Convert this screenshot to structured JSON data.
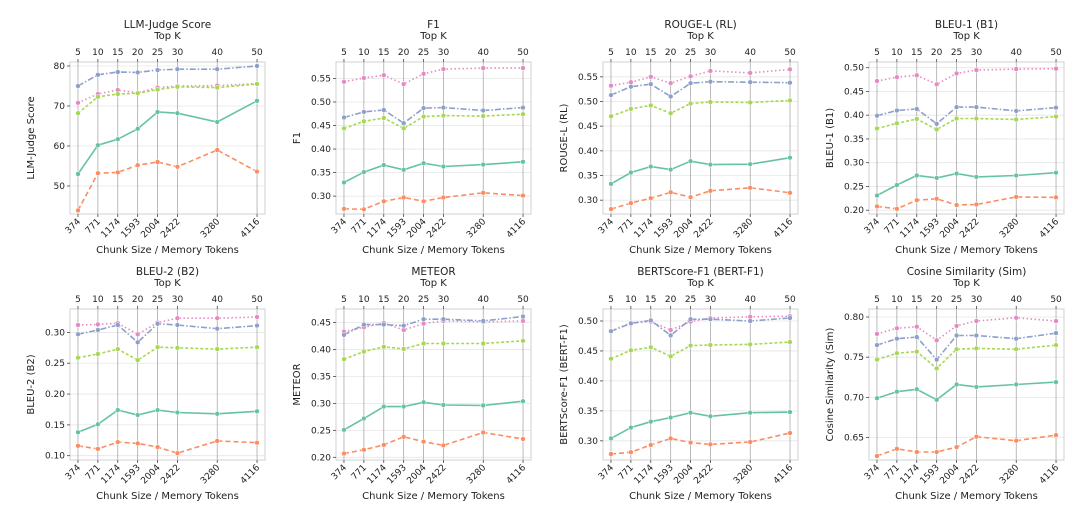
{
  "chart_data": {
    "type": "line",
    "layout": "2x4 grid",
    "xlabel": "Chunk Size / Memory Tokens",
    "top_axis_label": "Top K",
    "x_bottom_ticks": [
      "374",
      "771",
      "1174",
      "1593",
      "2004",
      "2422",
      "3280",
      "4116"
    ],
    "x_top_ticks": [
      "5",
      "10",
      "15",
      "20",
      "25",
      "30",
      "40",
      "50"
    ],
    "x_positions_topk": [
      5,
      10,
      15,
      20,
      25,
      30,
      40,
      50
    ],
    "x_points_topk": [
      5,
      10,
      15,
      20,
      25,
      30,
      40,
      50
    ],
    "series_styles": [
      {
        "key": "pink",
        "color": "#e78ac3",
        "dash": "1.5,2.5"
      },
      {
        "key": "purple",
        "color": "#8da0cb",
        "dash": "6,2,1.5,2"
      },
      {
        "key": "lime",
        "color": "#a6d854",
        "dash": "3,2"
      },
      {
        "key": "green",
        "color": "#66c2a5",
        "dash": ""
      },
      {
        "key": "orange",
        "color": "#fc8d62",
        "dash": "5,3"
      }
    ],
    "panels": [
      {
        "title": "LLM-Judge Score",
        "ylabel": "LLM-Judge Score",
        "ylim": [
          43,
          81
        ],
        "yticks": [
          50,
          60,
          70,
          80
        ],
        "series": {
          "pink": [
            70.8,
            73.0,
            74.0,
            73.3,
            74.6,
            75.0,
            75.1,
            75.6
          ],
          "purple": [
            75.0,
            77.8,
            78.5,
            78.4,
            79.0,
            79.2,
            79.2,
            80.0
          ],
          "lime": [
            68.2,
            72.3,
            73.0,
            73.2,
            74.1,
            74.8,
            74.6,
            75.5
          ],
          "green": [
            53.0,
            60.2,
            61.7,
            64.3,
            68.5,
            68.2,
            66.0,
            71.3
          ],
          "orange": [
            43.9,
            53.2,
            53.4,
            55.2,
            56.0,
            54.8,
            59.0,
            53.6
          ]
        }
      },
      {
        "title": "F1",
        "ylabel": "F1",
        "ylim": [
          0.262,
          0.585
        ],
        "yticks": [
          0.3,
          0.35,
          0.4,
          0.45,
          0.5,
          0.55
        ],
        "ytick_labels": [
          "0.30",
          "0.35",
          "0.40",
          "0.45",
          "0.50",
          "0.55"
        ],
        "series": {
          "pink": [
            0.543,
            0.551,
            0.557,
            0.538,
            0.56,
            0.57,
            0.572,
            0.572
          ],
          "purple": [
            0.467,
            0.479,
            0.483,
            0.455,
            0.487,
            0.488,
            0.482,
            0.488
          ],
          "lime": [
            0.444,
            0.459,
            0.466,
            0.444,
            0.469,
            0.471,
            0.47,
            0.474
          ],
          "green": [
            0.329,
            0.351,
            0.366,
            0.356,
            0.37,
            0.363,
            0.367,
            0.373
          ],
          "orange": [
            0.273,
            0.272,
            0.289,
            0.297,
            0.289,
            0.297,
            0.307,
            0.301
          ]
        }
      },
      {
        "title": "ROUGE-L (RL)",
        "ylabel": "ROUGE-L (RL)",
        "ylim": [
          0.272,
          0.58
        ],
        "yticks": [
          0.3,
          0.35,
          0.4,
          0.45,
          0.5,
          0.55
        ],
        "ytick_labels": [
          "0.30",
          "0.35",
          "0.40",
          "0.45",
          "0.50",
          "0.55"
        ],
        "series": {
          "pink": [
            0.532,
            0.539,
            0.55,
            0.537,
            0.551,
            0.562,
            0.558,
            0.565
          ],
          "purple": [
            0.513,
            0.53,
            0.535,
            0.51,
            0.537,
            0.54,
            0.539,
            0.538
          ],
          "lime": [
            0.47,
            0.485,
            0.492,
            0.476,
            0.496,
            0.499,
            0.498,
            0.502
          ],
          "green": [
            0.333,
            0.356,
            0.368,
            0.362,
            0.379,
            0.372,
            0.373,
            0.386
          ],
          "orange": [
            0.282,
            0.294,
            0.304,
            0.316,
            0.306,
            0.319,
            0.325,
            0.315
          ]
        }
      },
      {
        "title": "BLEU-1 (B1)",
        "ylabel": "BLEU-1 (B1)",
        "ylim": [
          0.192,
          0.512
        ],
        "yticks": [
          0.2,
          0.25,
          0.3,
          0.35,
          0.4,
          0.45,
          0.5
        ],
        "ytick_labels": [
          "0.20",
          "0.25",
          "0.30",
          "0.35",
          "0.40",
          "0.45",
          "0.50"
        ],
        "series": {
          "pink": [
            0.472,
            0.48,
            0.484,
            0.465,
            0.488,
            0.495,
            0.497,
            0.498
          ],
          "purple": [
            0.399,
            0.41,
            0.413,
            0.382,
            0.417,
            0.417,
            0.409,
            0.416
          ],
          "lime": [
            0.372,
            0.383,
            0.392,
            0.37,
            0.393,
            0.393,
            0.391,
            0.397
          ],
          "green": [
            0.231,
            0.253,
            0.273,
            0.268,
            0.277,
            0.27,
            0.273,
            0.279
          ],
          "orange": [
            0.208,
            0.203,
            0.221,
            0.224,
            0.211,
            0.212,
            0.228,
            0.227
          ]
        }
      },
      {
        "title": "BLEU-2 (B2)",
        "ylabel": "BLEU-2 (B2)",
        "ylim": [
          0.093,
          0.338
        ],
        "yticks": [
          0.1,
          0.15,
          0.2,
          0.25,
          0.3
        ],
        "ytick_labels": [
          "0.10",
          "0.15",
          "0.20",
          "0.25",
          "0.30"
        ],
        "series": {
          "pink": [
            0.312,
            0.313,
            0.315,
            0.297,
            0.316,
            0.323,
            0.323,
            0.325
          ],
          "purple": [
            0.297,
            0.304,
            0.312,
            0.284,
            0.314,
            0.312,
            0.306,
            0.311
          ],
          "lime": [
            0.259,
            0.265,
            0.273,
            0.255,
            0.276,
            0.275,
            0.273,
            0.276
          ],
          "green": [
            0.138,
            0.151,
            0.174,
            0.166,
            0.174,
            0.17,
            0.168,
            0.172
          ],
          "orange": [
            0.116,
            0.111,
            0.122,
            0.12,
            0.114,
            0.104,
            0.124,
            0.121
          ]
        }
      },
      {
        "title": "METEOR",
        "ylabel": "METEOR",
        "ylim": [
          0.195,
          0.475
        ],
        "yticks": [
          0.2,
          0.25,
          0.3,
          0.35,
          0.4,
          0.45
        ],
        "ytick_labels": [
          "0.20",
          "0.25",
          "0.30",
          "0.35",
          "0.40",
          "0.45"
        ],
        "series": {
          "pink": [
            0.433,
            0.441,
            0.449,
            0.436,
            0.448,
            0.453,
            0.451,
            0.453
          ],
          "purple": [
            0.427,
            0.446,
            0.446,
            0.444,
            0.456,
            0.456,
            0.453,
            0.461
          ],
          "lime": [
            0.382,
            0.396,
            0.405,
            0.401,
            0.411,
            0.411,
            0.411,
            0.416
          ],
          "green": [
            0.251,
            0.272,
            0.294,
            0.294,
            0.302,
            0.297,
            0.296,
            0.304
          ],
          "orange": [
            0.207,
            0.214,
            0.223,
            0.238,
            0.229,
            0.222,
            0.246,
            0.234
          ]
        }
      },
      {
        "title": "BERTScore-F1 (BERT-F1)",
        "ylabel": "BERTScore-F1 (BERT-F1)",
        "ylim": [
          0.268,
          0.52
        ],
        "yticks": [
          0.3,
          0.35,
          0.4,
          0.45,
          0.5
        ],
        "ytick_labels": [
          "0.30",
          "0.35",
          "0.40",
          "0.45",
          "0.50"
        ],
        "series": {
          "pink": [
            0.483,
            0.497,
            0.499,
            0.485,
            0.499,
            0.505,
            0.507,
            0.508
          ],
          "purple": [
            0.483,
            0.496,
            0.501,
            0.476,
            0.503,
            0.503,
            0.5,
            0.505
          ],
          "lime": [
            0.437,
            0.451,
            0.456,
            0.441,
            0.459,
            0.46,
            0.461,
            0.465
          ],
          "green": [
            0.304,
            0.322,
            0.332,
            0.339,
            0.347,
            0.341,
            0.347,
            0.348
          ],
          "orange": [
            0.278,
            0.281,
            0.293,
            0.304,
            0.297,
            0.294,
            0.298,
            0.313
          ]
        }
      },
      {
        "title": "Cosine Similarity (Sim)",
        "ylabel": "Cosine Similarity (Sim)",
        "ylim": [
          0.622,
          0.81
        ],
        "yticks": [
          0.65,
          0.7,
          0.75,
          0.8
        ],
        "ytick_labels": [
          "0.65",
          "0.70",
          "0.75",
          "0.80"
        ],
        "series": {
          "pink": [
            0.779,
            0.786,
            0.788,
            0.771,
            0.789,
            0.795,
            0.799,
            0.795
          ],
          "purple": [
            0.765,
            0.773,
            0.775,
            0.747,
            0.777,
            0.777,
            0.773,
            0.78
          ],
          "lime": [
            0.747,
            0.755,
            0.757,
            0.736,
            0.76,
            0.761,
            0.76,
            0.765
          ],
          "green": [
            0.699,
            0.707,
            0.71,
            0.697,
            0.716,
            0.713,
            0.716,
            0.719
          ],
          "orange": [
            0.627,
            0.636,
            0.632,
            0.632,
            0.638,
            0.651,
            0.646,
            0.653
          ]
        }
      }
    ]
  }
}
